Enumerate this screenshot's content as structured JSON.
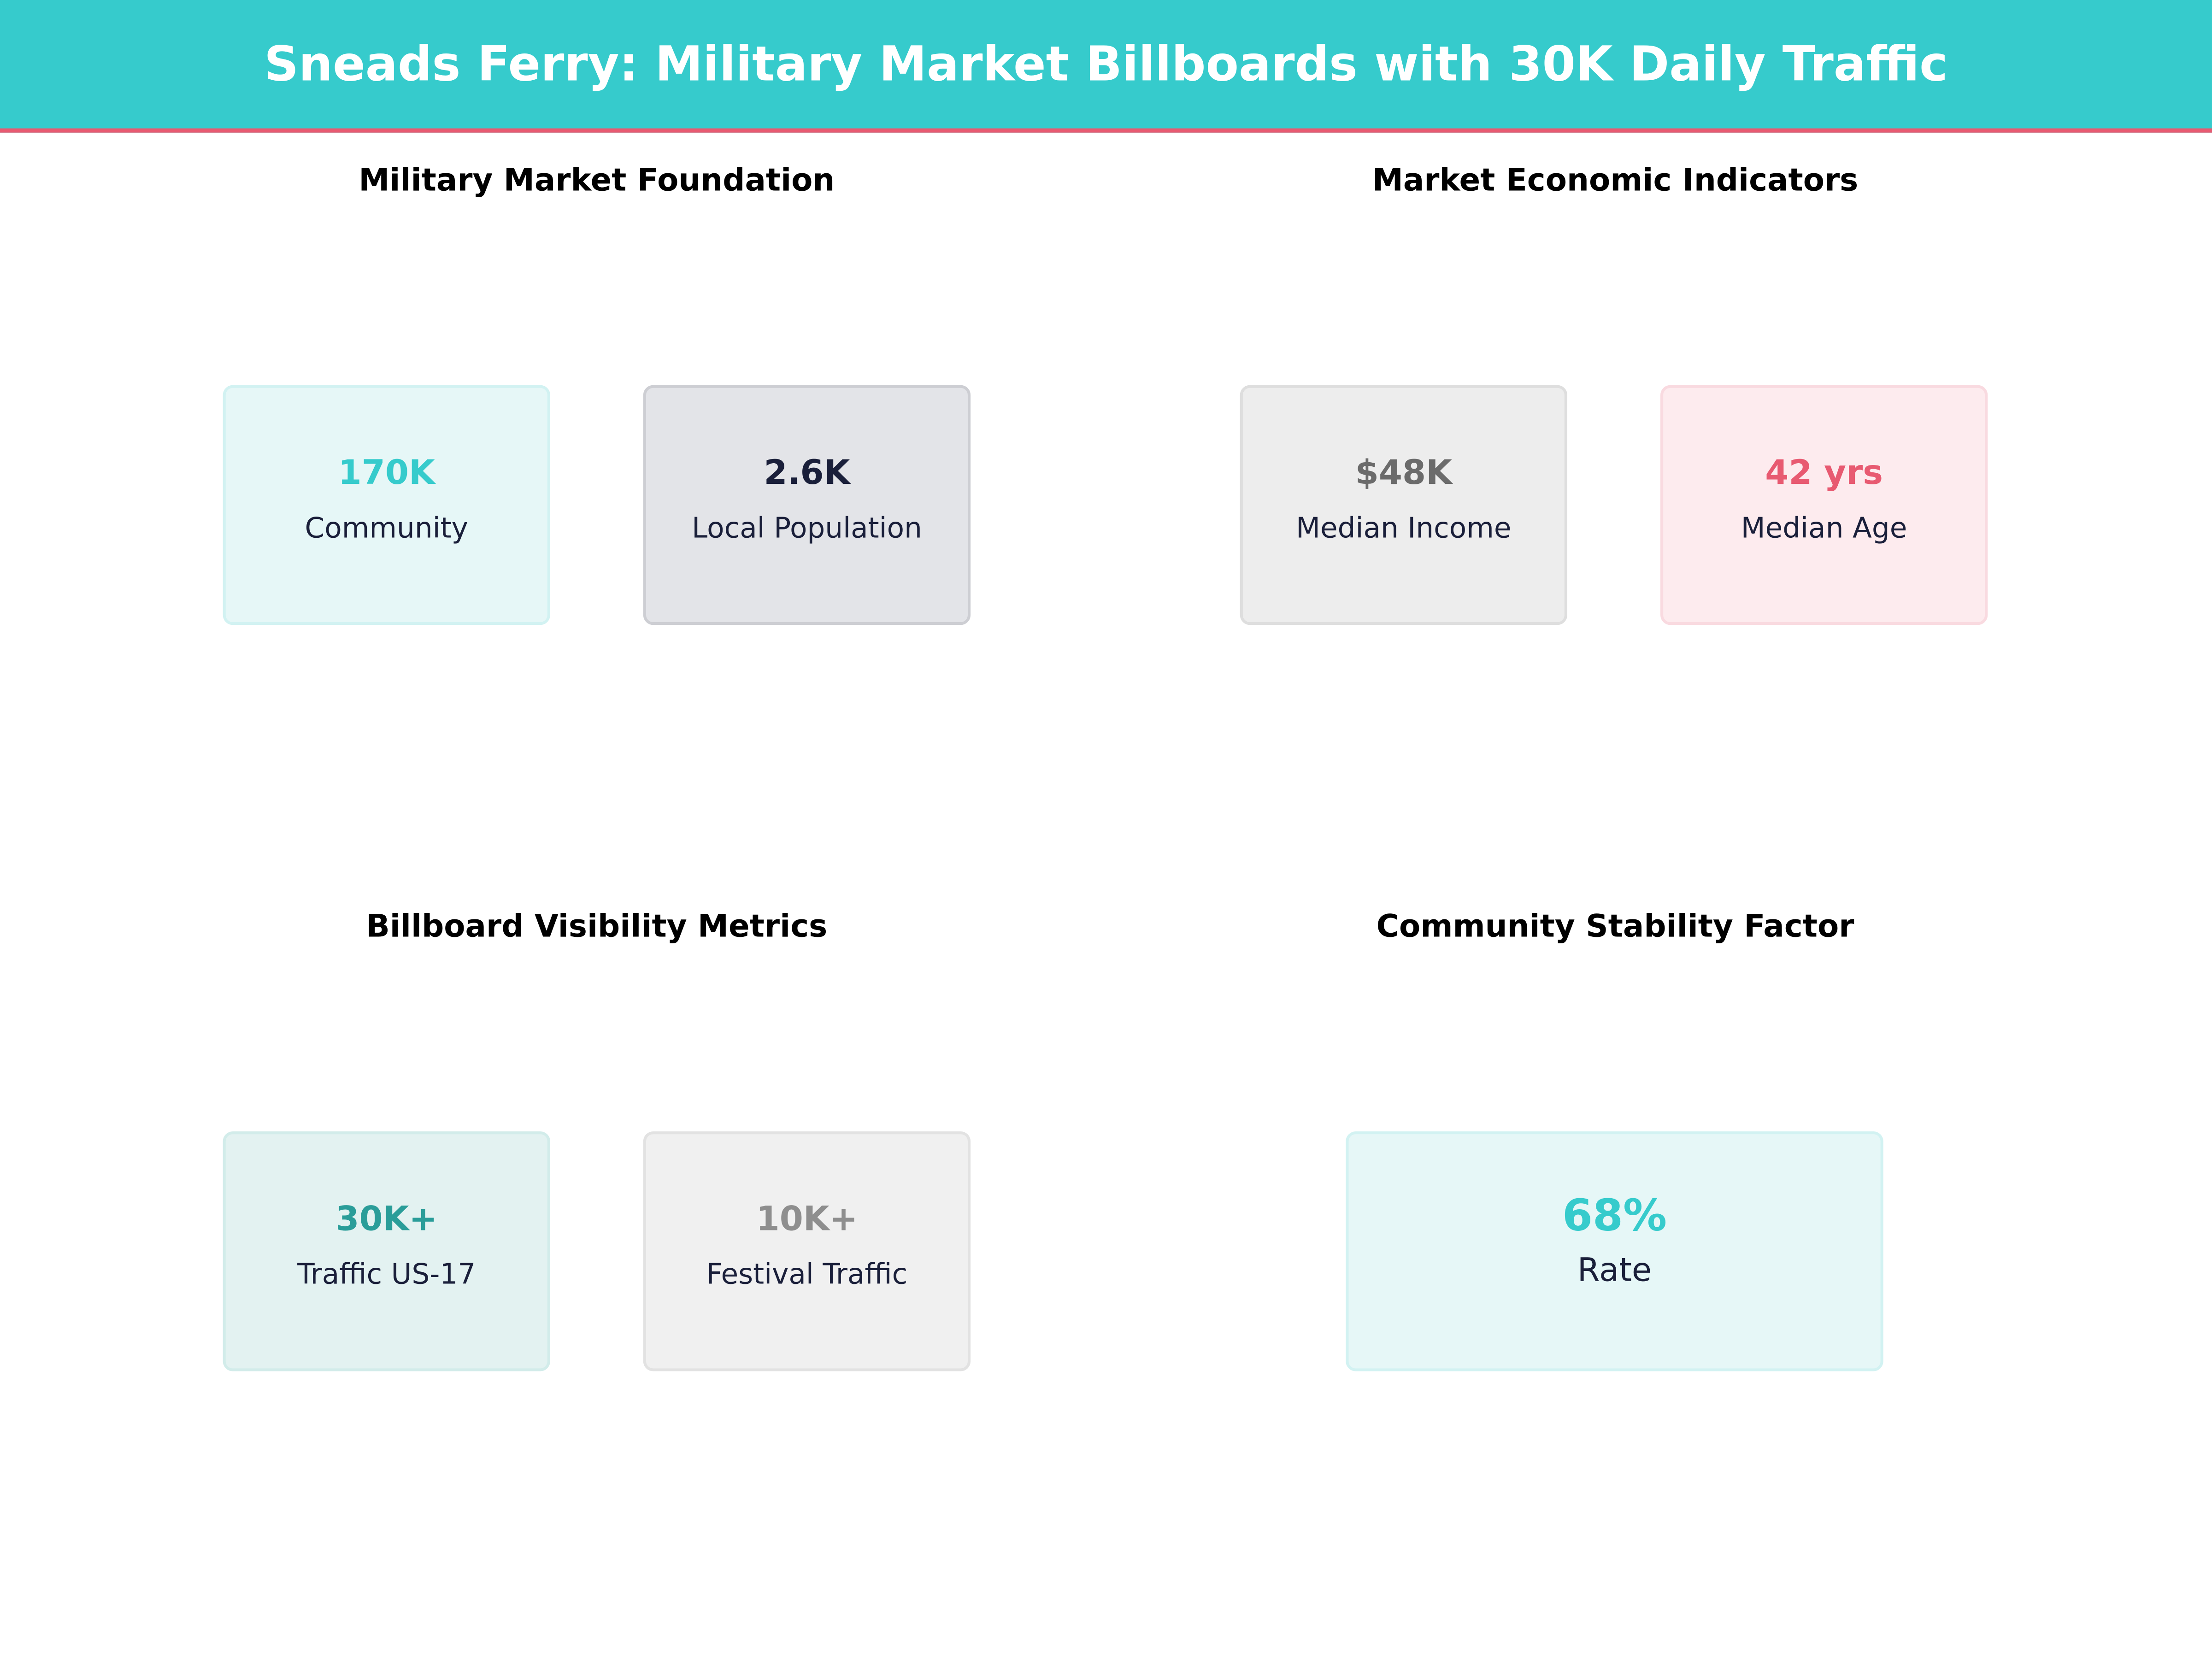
{
  "title": "Sneads Ferry: Military Market Billboards with 30K Daily Traffic",
  "colors": {
    "header": "#36CBCC",
    "accent_line": "#E85A71"
  },
  "sections": [
    {
      "title": "Military Market Foundation",
      "cards": [
        {
          "value": "170K",
          "label": "Community",
          "value_color": "#36CBCC",
          "bg": "#E6F7F7",
          "border": "#D2F2F2"
        },
        {
          "value": "2.6K",
          "label": "Local Population",
          "value_color": "#1A1F3A",
          "bg": "#E3E4E8",
          "border": "#CDCED3"
        }
      ]
    },
    {
      "title": "Market Economic Indicators",
      "cards": [
        {
          "value": "$48K",
          "label": "Median Income",
          "value_color": "#6B6B6B",
          "bg": "#EDEDED",
          "border": "#DEDEDE"
        },
        {
          "value": "42 yrs",
          "label": "Median Age",
          "value_color": "#E85A71",
          "bg": "#FDEBEE",
          "border": "#F9DAE0"
        }
      ]
    },
    {
      "title": "Billboard Visibility Metrics",
      "cards": [
        {
          "value": "30K+",
          "label": "Traffic US-17",
          "value_color": "#2A9D99",
          "bg": "#E3F2F1",
          "border": "#D2ECEA"
        },
        {
          "value": "10K+",
          "label": "Festival Traffic",
          "value_color": "#8E8E8E",
          "bg": "#F0F0F0",
          "border": "#E2E2E2"
        }
      ]
    },
    {
      "title": "Community Stability Factor",
      "cards": [
        {
          "value": "68%",
          "label": "Rate",
          "value_color": "#36CBCC",
          "bg": "#E6F7F7",
          "border": "#D2F2F2"
        }
      ]
    }
  ]
}
